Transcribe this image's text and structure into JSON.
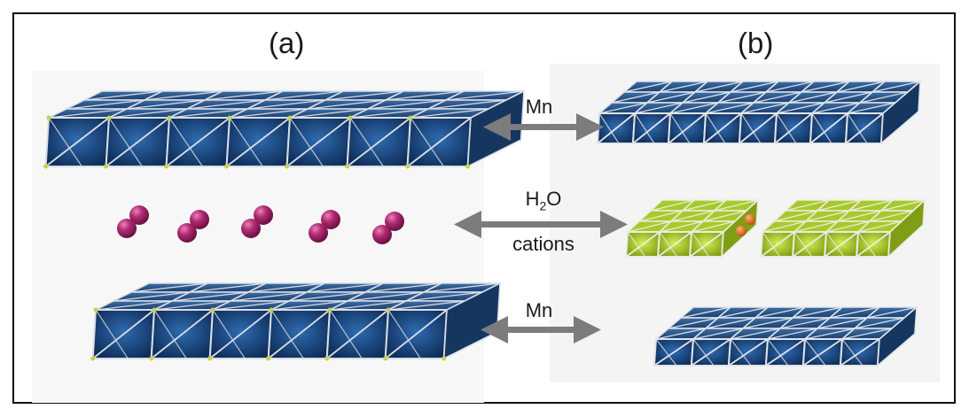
{
  "panels": {
    "a_label": "(a)",
    "b_label": "(b)"
  },
  "arrows": [
    {
      "lines": [
        "Mn"
      ]
    },
    {
      "lines": [
        "H",
        "2",
        "O",
        "cations"
      ]
    },
    {
      "lines": [
        "Mn"
      ]
    }
  ],
  "colors": {
    "octahedron_blue": "#1d4b86",
    "octahedron_blue_dark": "#0e2d58",
    "octahedron_green": "#b5d52a",
    "octahedron_green_dark": "#6f8e0f",
    "sphere_magenta": "#a8246a",
    "sphere_orange": "#e06a1b",
    "arrow_gray": "#7c7c7c"
  }
}
